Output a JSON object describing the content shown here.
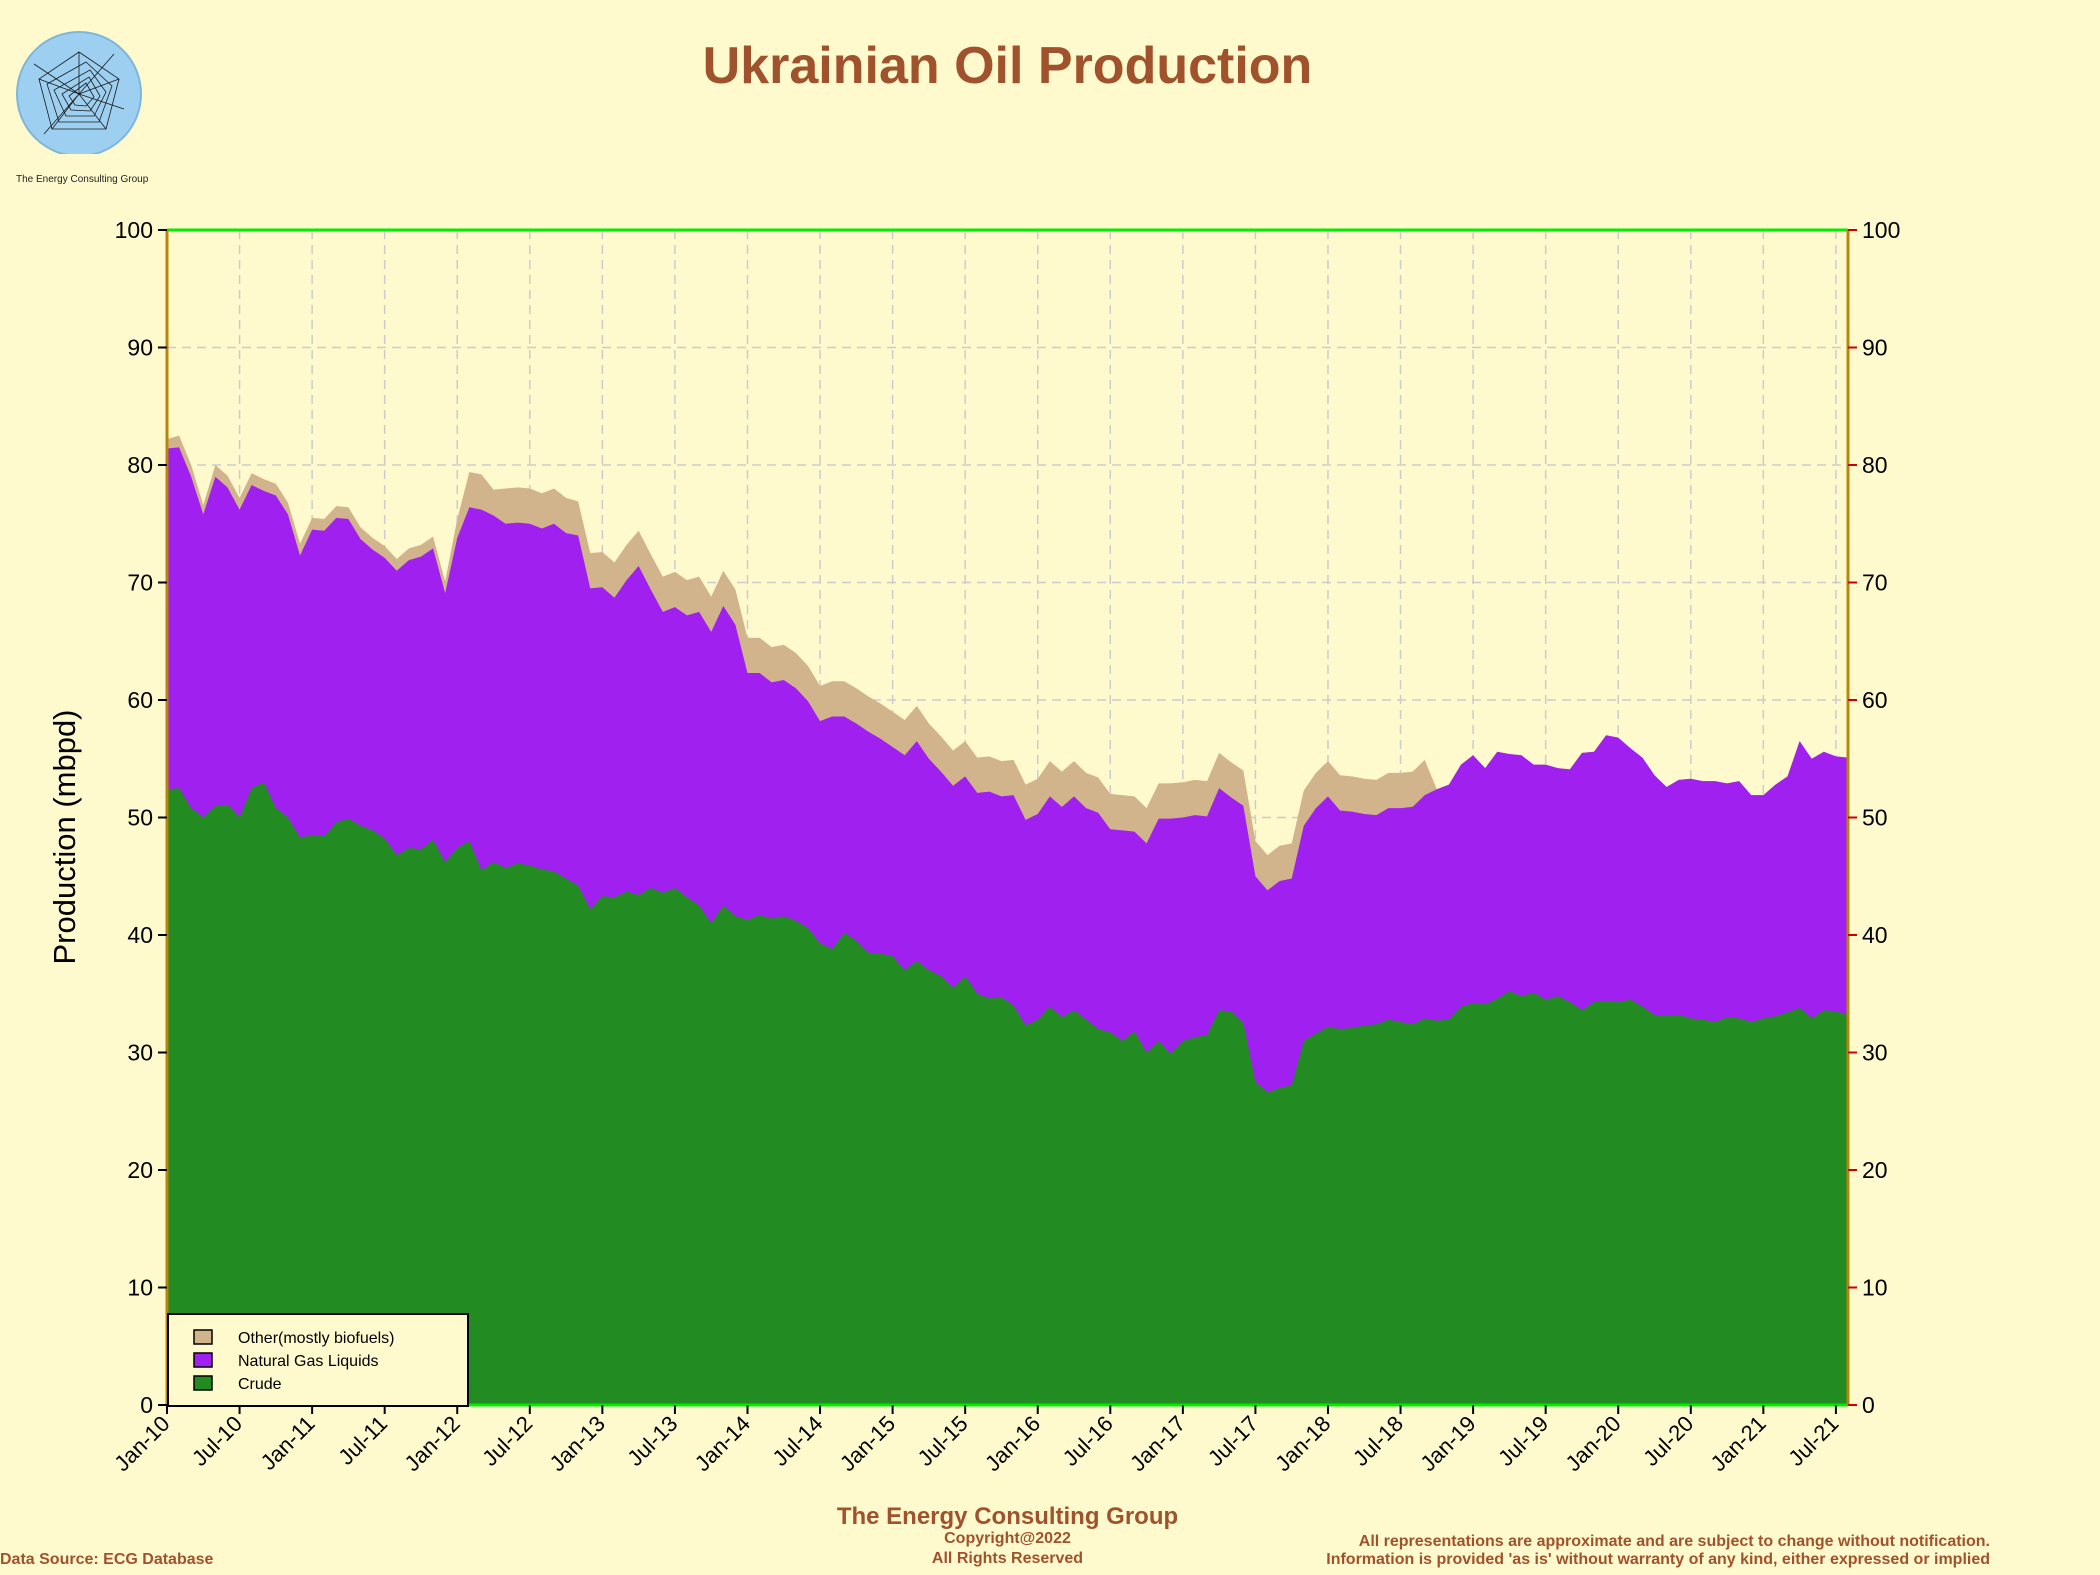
{
  "header": {
    "title": "Ukrainian Oil Production",
    "logo_caption": "The Energy Consulting Group"
  },
  "footer": {
    "company": "The Energy Consulting Group",
    "copyright": "Copyright@2022",
    "rights": "All Rights Reserved",
    "source": "Data Source: ECG Database",
    "disclaimer_1": "All representations are approximate and are subject to change without notification.",
    "disclaimer_2": "Information is provided 'as is' without warranty of any kind, either expressed or implied"
  },
  "chart_data": {
    "type": "area",
    "stacked": true,
    "title": "Ukrainian Oil Production",
    "ylabel": "Production (mbpd)",
    "xlabel": "",
    "ylim": [
      0,
      100
    ],
    "yticks": [
      0,
      10,
      20,
      30,
      40,
      50,
      60,
      70,
      80,
      90,
      100
    ],
    "grid": true,
    "legend_position": "bottom-left",
    "x_start": "Jan-10",
    "x_end": "Dec-21",
    "x_tick_labels": [
      "Jan-10",
      "Jul-10",
      "Jan-11",
      "Jul-11",
      "Jan-12",
      "Jul-12",
      "Jan-13",
      "Jul-13",
      "Jan-14",
      "Jul-14",
      "Jan-15",
      "Jul-15",
      "Jan-16",
      "Jul-16",
      "Jan-17",
      "Jul-17",
      "Jan-18",
      "Jul-18",
      "Jan-19",
      "Jul-19",
      "Jan-20",
      "Jul-20",
      "Jan-21",
      "Jul-21"
    ],
    "colors": {
      "background": "#FFFACD",
      "frame_top_bottom": "#00EE00",
      "frame_sides": "#B8860B",
      "tick_right": "#CC0000",
      "grid": "#CCCCCC",
      "title": "#A0522D"
    },
    "series": [
      {
        "name": "Crude",
        "color": "#228B22",
        "values": [
          52.4,
          52.5,
          50.8,
          50.0,
          51.0,
          51.1,
          50.0,
          52.5,
          53.0,
          50.8,
          50.0,
          48.3,
          48.5,
          48.4,
          49.6,
          49.9,
          49.3,
          48.9,
          48.2,
          46.8,
          47.4,
          47.3,
          48.1,
          46.2,
          47.4,
          48.0,
          45.5,
          46.2,
          45.7,
          46.1,
          45.9,
          45.6,
          45.4,
          44.8,
          44.2,
          42.2,
          43.3,
          43.2,
          43.7,
          43.4,
          44.0,
          43.6,
          44.0,
          43.2,
          42.5,
          41.0,
          42.5,
          41.6,
          41.3,
          41.7,
          41.4,
          41.6,
          41.2,
          40.6,
          39.3,
          38.8,
          40.2,
          39.5,
          38.5,
          38.4,
          38.2,
          37.0,
          37.8,
          37.0,
          36.5,
          35.5,
          36.5,
          35.0,
          34.6,
          34.7,
          34.0,
          32.3,
          32.8,
          33.9,
          33.0,
          33.6,
          32.8,
          32.0,
          31.7,
          31.0,
          31.8,
          30.0,
          31.0,
          29.9,
          31.0,
          31.3,
          31.5,
          33.6,
          33.5,
          32.5,
          27.5,
          26.6,
          27.0,
          27.2,
          31.0,
          31.6,
          32.2,
          32.0,
          32.1,
          32.3,
          32.4,
          32.8,
          32.6,
          32.4,
          32.9,
          32.7,
          32.8,
          33.9,
          34.2,
          34.1,
          34.6,
          35.2,
          34.8,
          35.1,
          34.5,
          34.8,
          34.3,
          33.6,
          34.3,
          34.4,
          34.3,
          34.5,
          33.9,
          33.2,
          33.1,
          33.2,
          32.9,
          32.8,
          32.6,
          33.0,
          32.9,
          32.6,
          32.9,
          33.1,
          33.4,
          33.8,
          32.9,
          33.6,
          33.5,
          33.2
        ]
      },
      {
        "name": "Natural Gas Liquids",
        "color": "#A020F0",
        "values": [
          29.0,
          29.0,
          28.2,
          25.8,
          28.0,
          27.0,
          26.2,
          25.8,
          24.8,
          26.6,
          25.8,
          24.0,
          26.0,
          26.0,
          25.9,
          25.5,
          24.4,
          23.9,
          23.9,
          24.2,
          24.5,
          24.9,
          24.8,
          22.9,
          26.4,
          28.4,
          30.7,
          29.5,
          29.3,
          29.0,
          29.1,
          29.0,
          29.6,
          29.4,
          29.8,
          27.3,
          26.3,
          25.5,
          26.5,
          28.0,
          25.4,
          23.9,
          23.9,
          24.0,
          25.0,
          24.8,
          25.5,
          24.8,
          21.0,
          20.6,
          20.1,
          20.1,
          19.8,
          19.3,
          18.9,
          19.8,
          18.4,
          18.5,
          18.8,
          18.3,
          17.8,
          18.3,
          18.7,
          18.0,
          17.4,
          17.2,
          17.0,
          17.1,
          17.6,
          17.1,
          17.9,
          17.5,
          17.5,
          17.9,
          17.9,
          18.2,
          18.0,
          18.4,
          17.3,
          17.9,
          17.0,
          17.8,
          18.9,
          20.0,
          19.0,
          18.9,
          18.6,
          18.9,
          18.2,
          18.5,
          17.5,
          17.2,
          17.6,
          17.6,
          18.3,
          19.2,
          19.6,
          18.6,
          18.4,
          18.0,
          17.8,
          18.0,
          18.2,
          18.5,
          19.0,
          19.7,
          20.0,
          20.6,
          21.1,
          20.1,
          21.0,
          20.2,
          20.5,
          19.4,
          20.0,
          19.4,
          19.8,
          21.9,
          21.3,
          22.6,
          22.5,
          21.4,
          21.2,
          20.4,
          19.5,
          20.0,
          20.4,
          20.3,
          20.5,
          19.9,
          20.2,
          19.3,
          19.0,
          19.7,
          20.1,
          22.7,
          22.1,
          22.0,
          21.7,
          21.9
        ]
      },
      {
        "name": "Other(mostly biofuels)",
        "color": "#D2B48C",
        "values": [
          0.8,
          1.0,
          1.0,
          0.8,
          1.0,
          1.0,
          1.0,
          1.0,
          1.0,
          1.0,
          1.0,
          1.0,
          1.0,
          1.0,
          1.0,
          1.0,
          1.0,
          1.0,
          1.0,
          1.0,
          1.0,
          1.0,
          1.0,
          1.0,
          1.6,
          3.0,
          3.0,
          2.2,
          3.0,
          3.0,
          3.0,
          3.0,
          3.0,
          3.0,
          2.9,
          3.0,
          3.0,
          3.0,
          3.0,
          3.0,
          3.0,
          3.0,
          3.0,
          3.0,
          3.0,
          3.0,
          3.0,
          3.0,
          3.0,
          3.0,
          3.0,
          3.0,
          3.0,
          3.0,
          3.0,
          3.0,
          3.0,
          3.0,
          3.0,
          3.0,
          3.0,
          3.0,
          3.0,
          3.0,
          3.0,
          3.0,
          3.0,
          3.0,
          3.0,
          3.0,
          3.0,
          3.0,
          3.0,
          3.0,
          3.0,
          3.0,
          3.0,
          3.0,
          3.0,
          3.0,
          3.0,
          3.0,
          3.0,
          3.0,
          3.0,
          3.0,
          3.0,
          3.0,
          3.0,
          3.0,
          3.0,
          3.0,
          3.0,
          3.0,
          3.0,
          3.0,
          3.0,
          3.0,
          3.0,
          3.0,
          3.0,
          3.0,
          3.0,
          3.0,
          3.0,
          0.0,
          0.0,
          0.0,
          0.0,
          0.0,
          0.0,
          0.0,
          0.0,
          0.0,
          0.0,
          0.0,
          0.0,
          0.0,
          0.0,
          0.0,
          0.0,
          0.0,
          0.0,
          0.0,
          0.0,
          0.0,
          0.0,
          0.0,
          0.0,
          0.0,
          0.0,
          0.0,
          0.0,
          0.0,
          0.0,
          0.0,
          0.0,
          0.0,
          0.0,
          0.0
        ]
      }
    ]
  }
}
